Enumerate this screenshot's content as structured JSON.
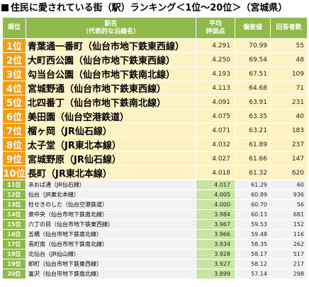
{
  "title": "住民に愛されている街（駅）ランキング＜1位～20位＞（宮城県）",
  "header": {
    "rank": "順位",
    "name_line1": "駅名",
    "name_line2": "（代表的な沿線名）",
    "score_line1": "平均",
    "score_line2": "評価点",
    "rate": "偏差値",
    "count": "回答者数"
  },
  "colors": {
    "header_green": "#8fb94b",
    "top_rank_orange": "#f59b10",
    "top_row_cream": "#fdf2c4",
    "low_score_green": "#c9e5a3",
    "low_row_gray": "#f2f2f2"
  },
  "rows": [
    {
      "rank": "1位",
      "name": "青葉通一番町（仙台市地下鉄東西線）",
      "score": "4.291",
      "dev": "70.99",
      "count": "55"
    },
    {
      "rank": "2位",
      "name": "大町西公園（仙台市地下鉄東西線）",
      "score": "4.250",
      "dev": "69.54",
      "count": "48"
    },
    {
      "rank": "3位",
      "name": "勾当台公園（仙台市地下鉄南北線）",
      "score": "4.193",
      "dev": "67.51",
      "count": "109"
    },
    {
      "rank": "4位",
      "name": "宮城野通（仙台市地下鉄東西線）",
      "score": "4.113",
      "dev": "64.68",
      "count": "71"
    },
    {
      "rank": "5位",
      "name": "北四番丁（仙台市地下鉄南北線）",
      "score": "4.091",
      "dev": "63.91",
      "count": "231"
    },
    {
      "rank": "6位",
      "name": "美田園（仙台空港鉄道）",
      "score": "4.075",
      "dev": "63.35",
      "count": "40"
    },
    {
      "rank": "7位",
      "name": "榴ヶ岡（JR仙石線）",
      "score": "4.071",
      "dev": "63.21",
      "count": "183"
    },
    {
      "rank": "8位",
      "name": "太子堂（JR東北本線）",
      "score": "4.032",
      "dev": "61.89",
      "count": "237"
    },
    {
      "rank": "9位",
      "name": "宮城野原（JR仙石線）",
      "score": "4.027",
      "dev": "61.66",
      "count": "147"
    },
    {
      "rank": "10位",
      "name": "長町（JR東北本線）",
      "score": "4.018",
      "dev": "61.32",
      "count": "620"
    },
    {
      "rank": "11位",
      "name": "あおば通（JR仙石線）",
      "score": "4.017",
      "dev": "61.29",
      "count": "60"
    },
    {
      "rank": "12位",
      "name": "仙台（JR東北本線）",
      "score": "4.005",
      "dev": "60.89",
      "count": "936"
    },
    {
      "rank": "13位",
      "name": "杜せきのした（仙台空港鉄道）",
      "score": "4.000",
      "dev": "60.70",
      "count": "56"
    },
    {
      "rank": "14位",
      "name": "泉中央（仙台市地下鉄南北線）",
      "score": "3.984",
      "dev": "60.13",
      "count": "681"
    },
    {
      "rank": "15位",
      "name": "六丁の目（仙台市地下鉄東西線）",
      "score": "3.967",
      "dev": "59.53",
      "count": "152"
    },
    {
      "rank": "16位",
      "name": "五橋（仙台市地下鉄南北線）",
      "score": "3.966",
      "dev": "59.48",
      "count": "116"
    },
    {
      "rank": "17位",
      "name": "長町南（仙台市地下鉄南北線）",
      "score": "3.934",
      "dev": "58.35",
      "count": "262"
    },
    {
      "rank": "18位",
      "name": "北仙台（JR仙山線）",
      "score": "3.928",
      "dev": "58.17",
      "count": "517"
    },
    {
      "rank": "19位",
      "name": "卸町（仙台市地下鉄東西線）",
      "score": "3.927",
      "dev": "58.12",
      "count": "217"
    },
    {
      "rank": "20位",
      "name": "富沢（仙台市地下鉄南北線）",
      "score": "3.899",
      "dev": "57.14",
      "count": "298"
    }
  ]
}
